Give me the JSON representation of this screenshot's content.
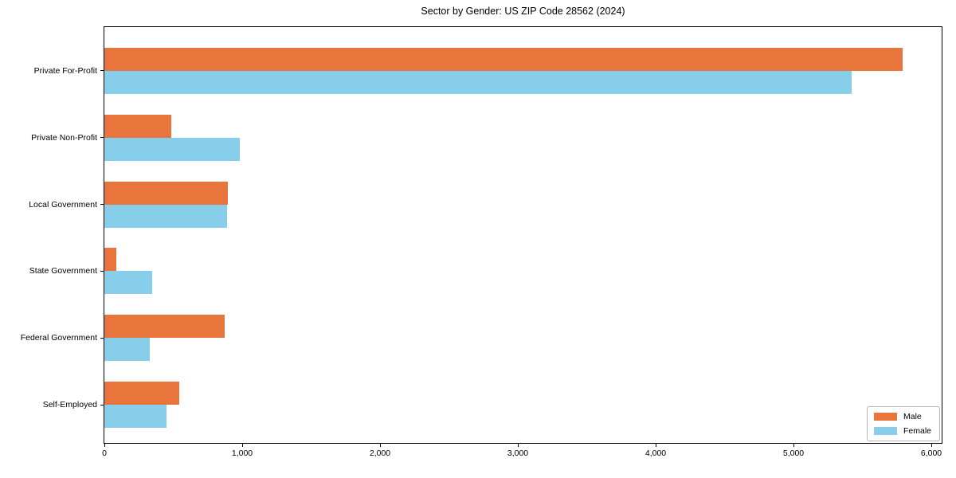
{
  "chart_data": {
    "type": "bar",
    "orientation": "horizontal",
    "title": "Sector by Gender: US ZIP Code 28562 (2024)",
    "categories": [
      "Private For-Profit",
      "Private Non-Profit",
      "Local Government",
      "State Government",
      "Federal Government",
      "Self-Employed"
    ],
    "series": [
      {
        "name": "Male",
        "color": "#e8763c",
        "values": [
          5790,
          487,
          895,
          85,
          874,
          545
        ]
      },
      {
        "name": "Female",
        "color": "#87ceeb",
        "values": [
          5420,
          982,
          891,
          346,
          331,
          448
        ]
      }
    ],
    "xlabel": "",
    "ylabel": "",
    "xlim": [
      0,
      6075
    ],
    "x_ticks": {
      "values": [
        0,
        1000,
        2000,
        3000,
        4000,
        5000,
        6000
      ],
      "labels": [
        "0",
        "1,000",
        "2,000",
        "3,000",
        "4,000",
        "5,000",
        "6,000"
      ]
    },
    "grid": false,
    "background": "#ffffff",
    "legend": {
      "position": "lower right"
    }
  }
}
